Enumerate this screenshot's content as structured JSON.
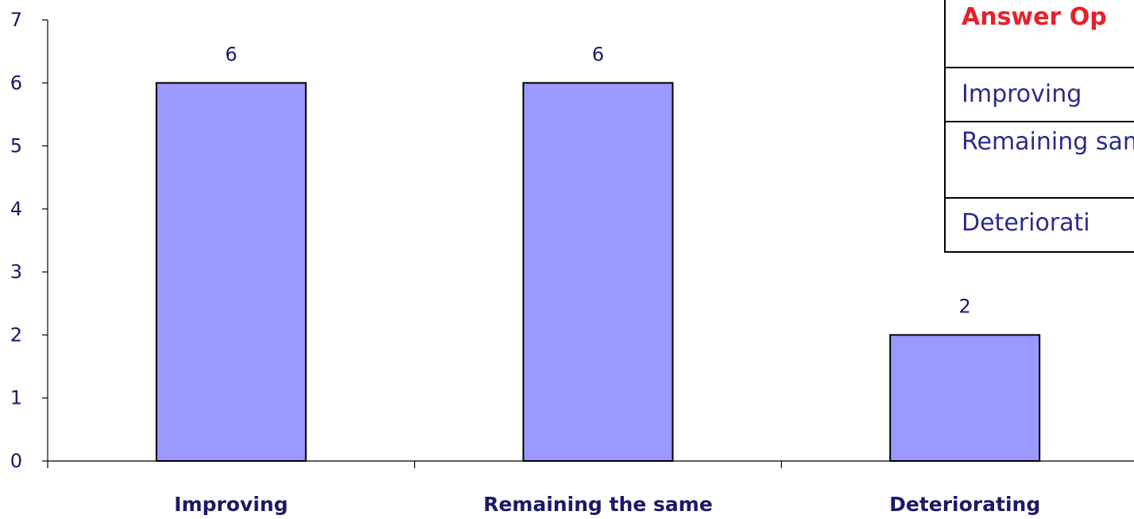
{
  "chart_data": {
    "type": "bar",
    "categories": [
      "Improving",
      "Remaining the same",
      "Deteriorating"
    ],
    "values": [
      6,
      6,
      2
    ],
    "data_labels": [
      "6",
      "6",
      "2"
    ],
    "ylim": [
      0,
      7
    ],
    "yticks": [
      "0",
      "1",
      "2",
      "3",
      "4",
      "5",
      "6",
      "7"
    ],
    "grid": false,
    "bar_color": "#9999ff",
    "text_color": "#1a1a66"
  },
  "answer_table": {
    "header": "Answer Op",
    "rows": [
      "Improving",
      "Remaining same",
      "Deteriorati"
    ],
    "header_color": "#e8202a",
    "row_color": "#2b2b8c"
  }
}
